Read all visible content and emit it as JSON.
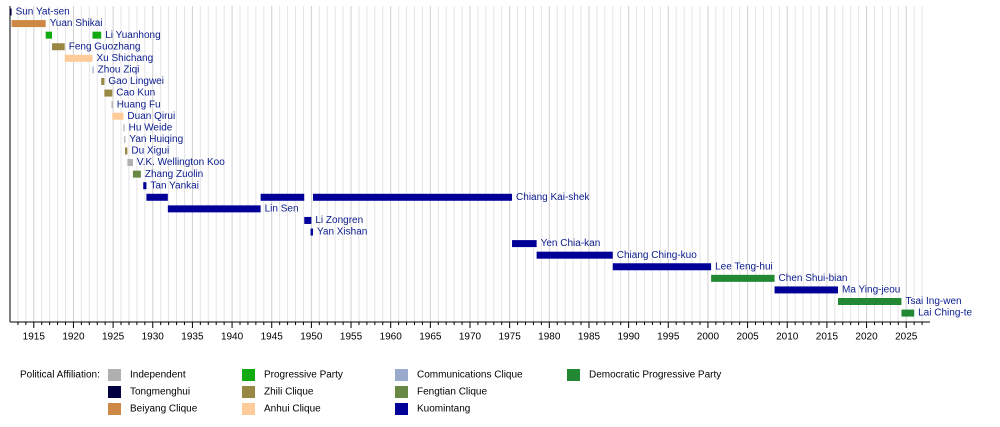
{
  "chart_data": {
    "type": "timeline",
    "xlim": [
      1912,
      2028
    ],
    "xticks": [
      1915,
      1920,
      1925,
      1930,
      1935,
      1940,
      1945,
      1950,
      1955,
      1960,
      1965,
      1970,
      1975,
      1980,
      1985,
      1990,
      1995,
      2000,
      2005,
      2010,
      2015,
      2020,
      2025
    ],
    "minor_xticks": [
      1913,
      1914,
      1916,
      1917,
      1918,
      1919,
      1921,
      1922,
      1923,
      1924,
      1926,
      1927,
      1928,
      1929,
      1931,
      1932,
      1933,
      1934,
      1936,
      1937,
      1938,
      1939,
      1941,
      1942,
      1943,
      1944,
      1946,
      1947,
      1948,
      1949,
      1951,
      1952,
      1953,
      1954,
      1956,
      1957,
      1958,
      1959,
      1961,
      1962,
      1963,
      1964,
      1966,
      1967,
      1968,
      1969,
      1971,
      1972,
      1973,
      1974,
      1976,
      1977,
      1978,
      1979,
      1981,
      1982,
      1983,
      1984,
      1986,
      1987,
      1988,
      1989,
      1991,
      1992,
      1993,
      1994,
      1996,
      1997,
      1998,
      1999,
      2001,
      2002,
      2003,
      2004,
      2006,
      2007,
      2008,
      2009,
      2011,
      2012,
      2013,
      2014,
      2016,
      2017,
      2018,
      2019,
      2021,
      2022,
      2023,
      2024,
      2026,
      2027
    ],
    "grid": true,
    "legend_title": "Political Affiliation:",
    "parties": [
      {
        "name": "Independent",
        "color": "#b0b0b0"
      },
      {
        "name": "Tongmenghui",
        "color": "#000040"
      },
      {
        "name": "Beiyang Clique",
        "color": "#cc8844"
      },
      {
        "name": "Progressive Party",
        "color": "#11aa11"
      },
      {
        "name": "Zhili Clique",
        "color": "#998844"
      },
      {
        "name": "Anhui Clique",
        "color": "#ffcc99"
      },
      {
        "name": "Communications Clique",
        "color": "#99aacc"
      },
      {
        "name": "Fengtian Clique",
        "color": "#668844"
      },
      {
        "name": "Kuomintang",
        "color": "#000099"
      },
      {
        "name": "Democratic Progressive Party",
        "color": "#228833"
      }
    ],
    "rows": [
      {
        "name": "Sun Yat-sen",
        "terms": [
          {
            "start": 1912.0,
            "end": 1912.2,
            "party": "Tongmenghui"
          }
        ]
      },
      {
        "name": "Yuan Shikai",
        "terms": [
          {
            "start": 1912.2,
            "end": 1916.5,
            "party": "Beiyang Clique"
          }
        ]
      },
      {
        "name": "Li Yuanhong",
        "terms": [
          {
            "start": 1916.5,
            "end": 1917.3,
            "party": "Progressive Party"
          },
          {
            "start": 1922.4,
            "end": 1923.5,
            "party": "Progressive Party"
          }
        ]
      },
      {
        "name": "Feng Guozhang",
        "terms": [
          {
            "start": 1917.3,
            "end": 1918.9,
            "party": "Zhili Clique"
          }
        ]
      },
      {
        "name": "Xu Shichang",
        "terms": [
          {
            "start": 1918.9,
            "end": 1922.4,
            "party": "Anhui Clique"
          }
        ]
      },
      {
        "name": "Zhou Ziqi",
        "terms": [
          {
            "start": 1922.4,
            "end": 1922.5,
            "party": "Communications Clique"
          }
        ]
      },
      {
        "name": "Gao Lingwei",
        "terms": [
          {
            "start": 1923.5,
            "end": 1923.9,
            "party": "Zhili Clique"
          }
        ]
      },
      {
        "name": "Cao Kun",
        "terms": [
          {
            "start": 1923.9,
            "end": 1924.9,
            "party": "Zhili Clique"
          }
        ]
      },
      {
        "name": "Huang Fu",
        "terms": [
          {
            "start": 1924.8,
            "end": 1924.95,
            "party": "Independent"
          }
        ]
      },
      {
        "name": "Duan Qirui",
        "terms": [
          {
            "start": 1924.9,
            "end": 1926.3,
            "party": "Anhui Clique"
          }
        ]
      },
      {
        "name": "Hu Weide",
        "terms": [
          {
            "start": 1926.3,
            "end": 1926.4,
            "party": "Independent"
          }
        ]
      },
      {
        "name": "Yan Huiqing",
        "terms": [
          {
            "start": 1926.4,
            "end": 1926.5,
            "party": "Independent"
          }
        ]
      },
      {
        "name": "Du Xigui",
        "terms": [
          {
            "start": 1926.5,
            "end": 1926.8,
            "party": "Zhili Clique"
          }
        ]
      },
      {
        "name": "V.K. Wellington Koo",
        "terms": [
          {
            "start": 1926.8,
            "end": 1927.5,
            "party": "Independent"
          }
        ]
      },
      {
        "name": "Zhang Zuolin",
        "terms": [
          {
            "start": 1927.5,
            "end": 1928.5,
            "party": "Fengtian Clique"
          }
        ]
      },
      {
        "name": "Tan Yankai",
        "terms": [
          {
            "start": 1928.8,
            "end": 1929.2,
            "party": "Kuomintang"
          }
        ]
      },
      {
        "name": "Chiang Kai-shek",
        "terms": [
          {
            "start": 1929.2,
            "end": 1931.9,
            "party": "Kuomintang"
          },
          {
            "start": 1943.6,
            "end": 1949.1,
            "party": "Kuomintang"
          },
          {
            "start": 1950.2,
            "end": 1975.3,
            "party": "Kuomintang"
          }
        ]
      },
      {
        "name": "Lin Sen",
        "terms": [
          {
            "start": 1931.9,
            "end": 1943.6,
            "party": "Kuomintang"
          }
        ]
      },
      {
        "name": "Li Zongren",
        "terms": [
          {
            "start": 1949.1,
            "end": 1950.0,
            "party": "Kuomintang"
          }
        ]
      },
      {
        "name": "Yan Xishan",
        "terms": [
          {
            "start": 1949.9,
            "end": 1950.2,
            "party": "Kuomintang"
          }
        ]
      },
      {
        "name": "Yen Chia-kan",
        "terms": [
          {
            "start": 1975.3,
            "end": 1978.4,
            "party": "Kuomintang"
          }
        ]
      },
      {
        "name": "Chiang Ching-kuo",
        "terms": [
          {
            "start": 1978.4,
            "end": 1988.0,
            "party": "Kuomintang"
          }
        ]
      },
      {
        "name": "Lee Teng-hui",
        "terms": [
          {
            "start": 1988.0,
            "end": 2000.4,
            "party": "Kuomintang"
          }
        ]
      },
      {
        "name": "Chen Shui-bian",
        "terms": [
          {
            "start": 2000.4,
            "end": 2008.4,
            "party": "Democratic Progressive Party"
          }
        ]
      },
      {
        "name": "Ma Ying-jeou",
        "terms": [
          {
            "start": 2008.4,
            "end": 2016.4,
            "party": "Kuomintang"
          }
        ]
      },
      {
        "name": "Tsai Ing-wen",
        "terms": [
          {
            "start": 2016.4,
            "end": 2024.4,
            "party": "Democratic Progressive Party"
          }
        ]
      },
      {
        "name": "Lai Ching-te",
        "terms": [
          {
            "start": 2024.4,
            "end": 2026.0,
            "party": "Democratic Progressive Party"
          }
        ]
      }
    ]
  }
}
